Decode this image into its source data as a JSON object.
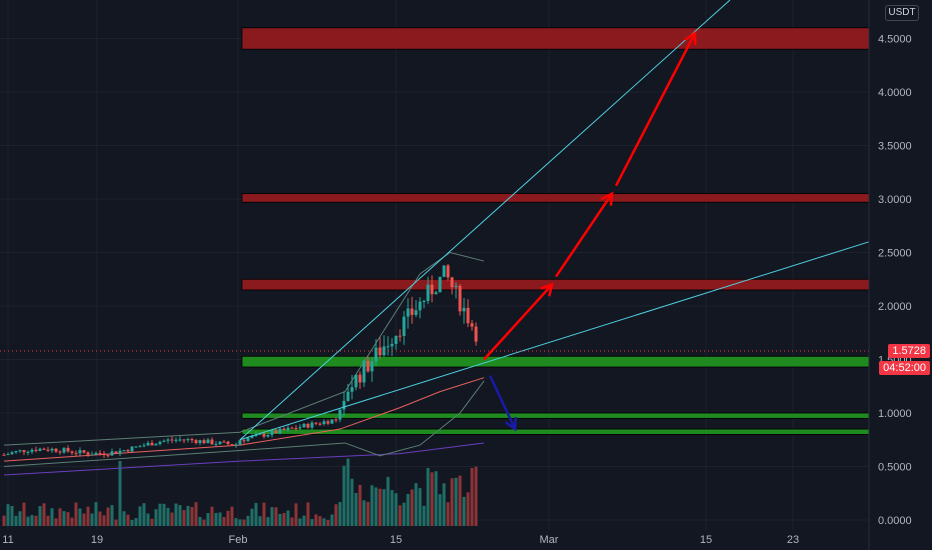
{
  "currency": "USDT",
  "current_price": "1.5728",
  "countdown": "04:52:00",
  "colors": {
    "background": "#131722",
    "grid": "#1e222d",
    "candle_up": "#26a69a",
    "candle_down": "#ef5350",
    "vol_up": "#1f6f67",
    "vol_down": "#8c3437",
    "resistance_zone": "#8b1a1e",
    "support_zone": "#1f8a1f",
    "trendline": "#4dd0e1",
    "arrow_up": "#ff0000",
    "arrow_down": "#1a1aa8",
    "ma_fast": "#e8605e",
    "ma_slow": "#6a3fbf",
    "bollinger": "#5c7f74"
  },
  "chart_data": {
    "type": "candlestick",
    "x_ticks": [
      "11",
      "19",
      "Feb",
      "15",
      "Mar",
      "15",
      "23"
    ],
    "y_ticks": [
      "0.0000",
      "0.5000",
      "1.0000",
      "1.5000",
      "2.0000",
      "2.5000",
      "3.0000",
      "3.5000",
      "4.0000",
      "4.5000"
    ],
    "ylim": [
      0,
      4.75
    ],
    "resistance_zones": [
      [
        4.4,
        4.6
      ],
      [
        2.15,
        2.25
      ],
      [
        2.97,
        3.05
      ]
    ],
    "support_zones": [
      [
        1.43,
        1.53
      ],
      [
        0.95,
        1.0
      ],
      [
        0.8,
        0.85
      ]
    ],
    "projection_up": [
      1.5,
      2.2,
      3.05,
      4.55
    ],
    "projection_down": [
      1.35,
      0.85
    ],
    "trendlines": [
      {
        "name": "upper",
        "from": [
          0,
          0.75
        ],
        "to": [
          1,
          4.9
        ]
      },
      {
        "name": "lower",
        "from": [
          0,
          0.75
        ],
        "to": [
          1,
          2.6
        ]
      }
    ]
  }
}
